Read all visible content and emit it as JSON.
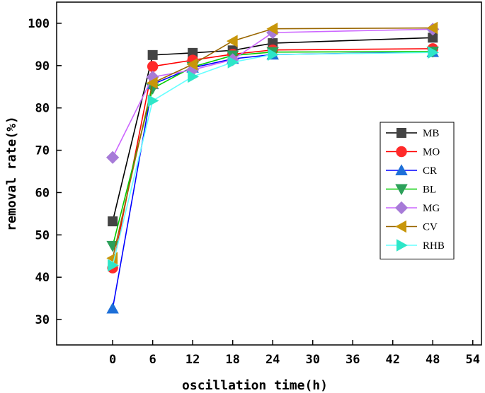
{
  "chart_data": {
    "type": "line",
    "title": "",
    "xlabel": "oscillation time(h)",
    "ylabel": "removal rate(%)",
    "xlim": [
      -8.4,
      55.3
    ],
    "ylim": [
      24,
      105
    ],
    "xticks": [
      0,
      6,
      12,
      18,
      24,
      30,
      36,
      42,
      48,
      54
    ],
    "yticks": [
      30,
      40,
      50,
      60,
      70,
      80,
      90,
      100
    ],
    "x": [
      0,
      6,
      12,
      18,
      24,
      48
    ],
    "legend_position": "right",
    "series": [
      {
        "name": "MB",
        "color": "#000000",
        "marker": "square",
        "markerColor": "#444444",
        "values": [
          53.2,
          92.5,
          93.0,
          93.6,
          95.3,
          96.6
        ]
      },
      {
        "name": "MO",
        "color": "#ff0000",
        "marker": "circle",
        "markerColor": "#ff2a2a",
        "values": [
          42.2,
          89.8,
          91.3,
          92.7,
          93.7,
          94.0
        ]
      },
      {
        "name": "CR",
        "color": "#0000ff",
        "marker": "triangle-up",
        "markerColor": "#1d6fd8",
        "values": [
          32.6,
          85.6,
          89.5,
          91.6,
          92.6,
          93.2
        ]
      },
      {
        "name": "BL",
        "color": "#00cc00",
        "marker": "triangle-down",
        "markerColor": "#2ca05a",
        "values": [
          47.4,
          84.6,
          89.7,
          92.4,
          93.2,
          93.3
        ]
      },
      {
        "name": "MG",
        "color": "#cc66ff",
        "marker": "diamond",
        "markerColor": "#a77bd8",
        "values": [
          68.3,
          87.3,
          89.0,
          91.4,
          97.8,
          98.6
        ]
      },
      {
        "name": "CV",
        "color": "#996600",
        "marker": "triangle-left",
        "markerColor": "#c8960a",
        "values": [
          44.5,
          85.9,
          90.3,
          95.8,
          98.7,
          98.9
        ]
      },
      {
        "name": "RHB",
        "color": "#66ffff",
        "marker": "triangle-right",
        "markerColor": "#2ee6c8",
        "values": [
          42.8,
          81.7,
          87.4,
          90.8,
          92.6,
          93.1
        ]
      }
    ]
  }
}
